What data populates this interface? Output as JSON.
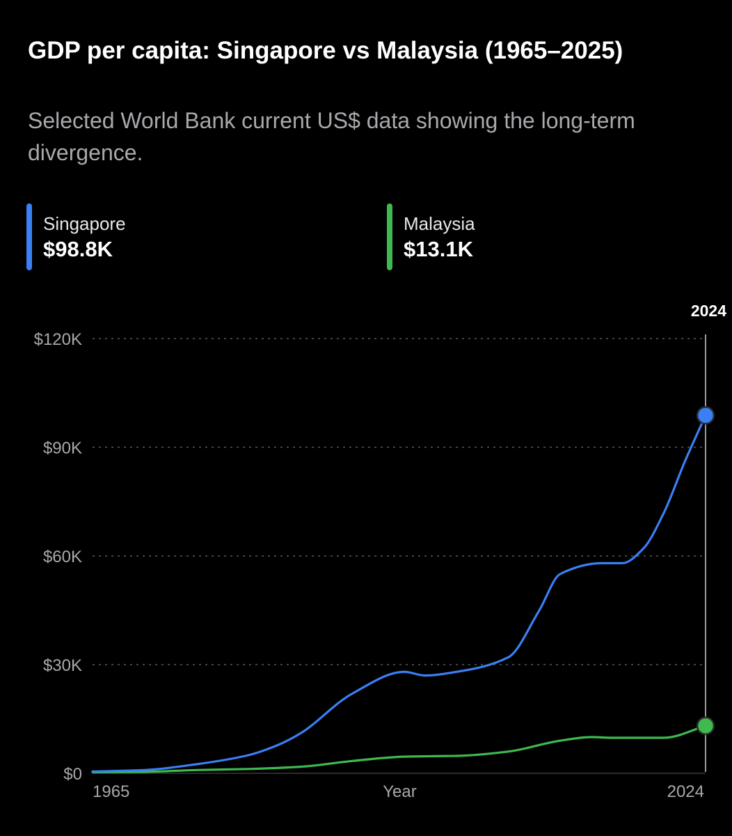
{
  "header": {
    "title": "GDP per capita: Singapore vs Malaysia (1965–2025)",
    "subtitle": "Selected World Bank current US$ data showing the long-term divergence."
  },
  "legend": [
    {
      "name": "Singapore",
      "value": "$98.8K",
      "color": "#3b7ff5"
    },
    {
      "name": "Malaysia",
      "value": "$13.1K",
      "color": "#3fb950"
    }
  ],
  "chart_data": {
    "type": "line",
    "xlabel": "Year",
    "ylabel": "",
    "xlim": [
      1965,
      2024
    ],
    "ylim": [
      0,
      120000
    ],
    "y_ticks": [
      0,
      30000,
      60000,
      90000,
      120000
    ],
    "y_tick_labels": [
      "$0",
      "$30K",
      "$60K",
      "$90K",
      "$120K"
    ],
    "x_tick_labels": [
      "1965",
      "2024"
    ],
    "grid": true,
    "highlight": {
      "x": 2024,
      "label": "2024"
    },
    "series": [
      {
        "name": "Singapore",
        "color": "#3b7ff5",
        "x": [
          1965,
          1970,
          1975,
          1980,
          1983,
          1985,
          1990,
          1995,
          1997,
          2000,
          2005,
          2008,
          2010,
          2014,
          2016,
          2018,
          2020,
          2022,
          2024
        ],
        "y": [
          500,
          900,
          2500,
          5000,
          8000,
          11000,
          22000,
          28000,
          27000,
          28000,
          32000,
          45000,
          55000,
          58000,
          58000,
          62000,
          72000,
          86000,
          98800
        ]
      },
      {
        "name": "Malaysia",
        "color": "#3fb950",
        "x": [
          1965,
          1970,
          1975,
          1980,
          1985,
          1990,
          1995,
          1997,
          2000,
          2005,
          2010,
          2013,
          2015,
          2020,
          2024
        ],
        "y": [
          300,
          400,
          900,
          1200,
          1800,
          3400,
          4600,
          4700,
          4800,
          6000,
          9000,
          10000,
          9800,
          9800,
          13100
        ]
      }
    ]
  }
}
